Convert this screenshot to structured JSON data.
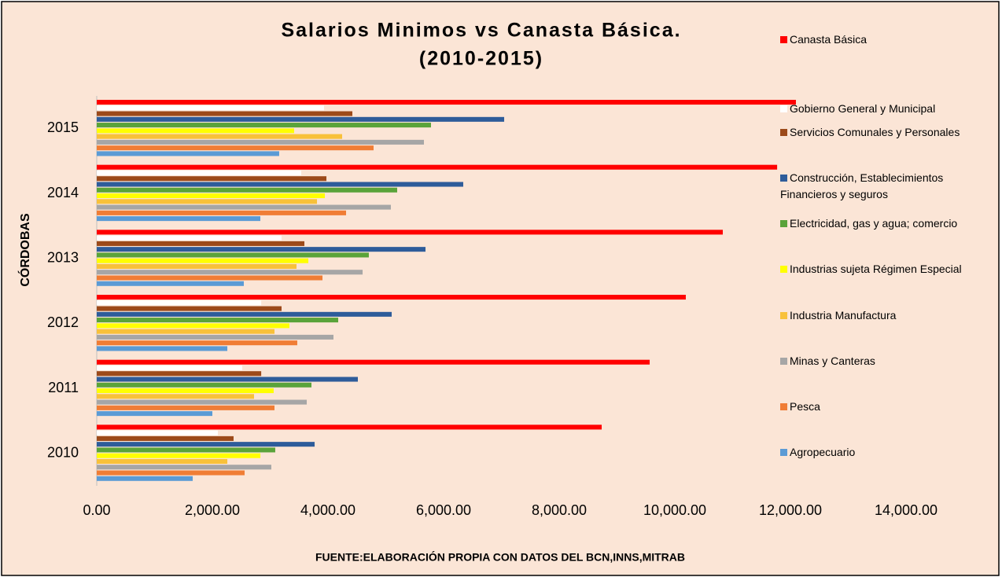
{
  "chart_data": {
    "type": "hbar",
    "title": "Salarios Minimos vs Canasta Básica.",
    "subtitle": "(2010-2015)",
    "y_label": "CÓRDOBAS",
    "x_label": "FUENTE:ELABORACIÓN PROPIA CON DATOS DEL BCN,INNS,MITRAB",
    "categories": [
      "2010",
      "2011",
      "2012",
      "2013",
      "2014",
      "2015"
    ],
    "series": [
      {
        "name": "Canasta Básica",
        "color": "#ff0000",
        "values": [
          8735,
          9565,
          10190,
          10830,
          11770,
          12095
        ]
      },
      {
        "name": "Gobierno General y Municipal",
        "color": "#ffffff",
        "values": [
          2095,
          2517,
          2845,
          3197,
          3537,
          3932
        ]
      },
      {
        "name": "Servicios Comunales y Personales",
        "color": "#9c4a1a",
        "values": [
          2367,
          2845,
          3197,
          3592,
          3973,
          4422
        ]
      },
      {
        "name": "Construcción, Establecimientos Financieros y seguros",
        "color": "#2e5c9a",
        "values": [
          3769,
          4517,
          5102,
          5687,
          6340,
          7048
        ]
      },
      {
        "name": "Electricidad, gas y agua; comercio",
        "color": "#5aa33a",
        "values": [
          3088,
          3714,
          4177,
          4707,
          5197,
          5782
        ]
      },
      {
        "name": "Industrias sujeta Régimen Especial",
        "color": "#ffff00",
        "values": [
          2830,
          3061,
          3333,
          3660,
          3946,
          3415
        ]
      },
      {
        "name": "Industria Manufactura",
        "color": "#f8c13a",
        "values": [
          2259,
          2721,
          3075,
          3456,
          3810,
          4245
        ]
      },
      {
        "name": "Minas y Canteras",
        "color": "#a6a6a6",
        "values": [
          3020,
          3633,
          4095,
          4599,
          5088,
          5660
        ]
      },
      {
        "name": "Pesca",
        "color": "#f07d35",
        "values": [
          2558,
          3075,
          3469,
          3905,
          4313,
          4789
        ]
      },
      {
        "name": "Agropecuario",
        "color": "#5b9bd5",
        "values": [
          1660,
          2000,
          2259,
          2544,
          2830,
          3156
        ]
      }
    ],
    "xlim": [
      0,
      14000
    ],
    "xticks": [
      {
        "value": 0,
        "label": "0.00"
      },
      {
        "value": 2000,
        "label": "2,000.00"
      },
      {
        "value": 4000,
        "label": "4,000.00"
      },
      {
        "value": 6000,
        "label": "6,000.00"
      },
      {
        "value": 8000,
        "label": "8,000.00"
      },
      {
        "value": 10000,
        "label": "10,000.00"
      },
      {
        "value": 12000,
        "label": "12,000.00"
      },
      {
        "value": 14000,
        "label": "14,000.00"
      }
    ],
    "background": "#fbe5d6"
  }
}
